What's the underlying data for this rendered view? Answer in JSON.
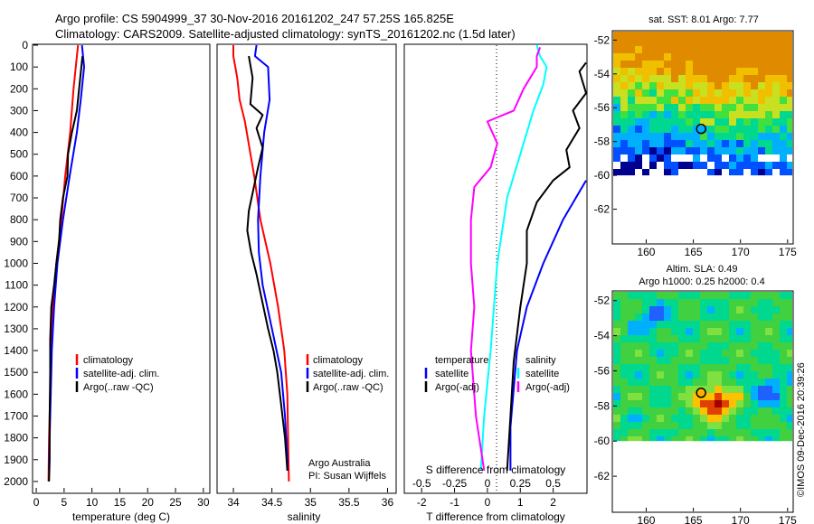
{
  "header": {
    "title_line1": "Argo profile: CS 5904999_37 30-Nov-2016 20161202_247 57.25S 165.825E",
    "title_line2": "Climatology: CARS2009. Satellite-adjusted climatology: synTS_20161202.nc (1.5d later)"
  },
  "colors": {
    "climatology": "#ff0000",
    "satellite_adj": "#0000ff",
    "argo": "#000000",
    "salinity_sat": "#00ffff",
    "salinity_argo": "#ff00ff"
  },
  "chart_data": [
    {
      "id": "temperature",
      "type": "line",
      "xlabel": "temperature (deg C)",
      "ylabel": "",
      "xlim": [
        -0.5,
        31
      ],
      "ylim": [
        2050,
        0
      ],
      "xticks": [
        0,
        5,
        10,
        15,
        20,
        25,
        30
      ],
      "yticks": [
        0,
        100,
        200,
        300,
        400,
        500,
        600,
        700,
        800,
        900,
        1000,
        1100,
        1200,
        1300,
        1400,
        1500,
        1600,
        1700,
        1800,
        1900,
        2000
      ],
      "legend": [
        "climatology",
        "satellite-adj. clim.",
        "Argo(..raw -QC)"
      ],
      "series": [
        {
          "name": "climatology",
          "color": "#ff0000",
          "points": [
            [
              7.5,
              0
            ],
            [
              7.3,
              50
            ],
            [
              6.7,
              200
            ],
            [
              6.1,
              400
            ],
            [
              5.2,
              600
            ],
            [
              4.5,
              800
            ],
            [
              3.6,
              1000
            ],
            [
              3.0,
              1200
            ],
            [
              2.7,
              1400
            ],
            [
              2.5,
              1600
            ],
            [
              2.3,
              1800
            ],
            [
              2.2,
              2000
            ]
          ]
        },
        {
          "name": "satellite-adj. clim.",
          "color": "#0000ff",
          "points": [
            [
              8.2,
              0
            ],
            [
              8.6,
              100
            ],
            [
              8.0,
              250
            ],
            [
              7.3,
              400
            ],
            [
              6.0,
              600
            ],
            [
              4.8,
              800
            ],
            [
              3.8,
              1000
            ],
            [
              3.2,
              1200
            ],
            [
              2.8,
              1400
            ],
            [
              2.6,
              1600
            ],
            [
              2.4,
              1800
            ],
            [
              2.3,
              1950
            ]
          ]
        },
        {
          "name": "Argo(..raw -QC)",
          "color": "#000000",
          "points": [
            [
              8.3,
              50
            ],
            [
              7.9,
              150
            ],
            [
              7.3,
              300
            ],
            [
              6.4,
              400
            ],
            [
              5.7,
              500
            ],
            [
              5.6,
              600
            ],
            [
              4.8,
              700
            ],
            [
              4.3,
              800
            ],
            [
              4.1,
              900
            ],
            [
              3.6,
              1000
            ],
            [
              3.2,
              1100
            ],
            [
              2.7,
              1200
            ],
            [
              2.5,
              1350
            ],
            [
              2.5,
              1500
            ],
            [
              2.4,
              1700
            ],
            [
              2.4,
              1900
            ],
            [
              2.3,
              2000
            ]
          ]
        }
      ]
    },
    {
      "id": "salinity",
      "type": "line",
      "xlabel": "salinity",
      "ylabel": "",
      "xlim": [
        33.8,
        36.1
      ],
      "ylim": [
        2050,
        0
      ],
      "xticks": [
        34,
        34.5,
        35,
        35.5,
        36
      ],
      "xtick_labels": [
        "34",
        "34.5",
        "35",
        "35.5",
        "36"
      ],
      "legend": [
        "climatology",
        "satellite-adj. clim.",
        "Argo(..raw -QC)"
      ],
      "annotations": [
        "Argo Australia",
        "PI: Susan Wijffels"
      ],
      "series": [
        {
          "name": "climatology",
          "color": "#ff0000",
          "points": [
            [
              34.0,
              0
            ],
            [
              34.0,
              50
            ],
            [
              34.05,
              150
            ],
            [
              34.08,
              250
            ],
            [
              34.15,
              350
            ],
            [
              34.27,
              600
            ],
            [
              34.35,
              800
            ],
            [
              34.48,
              1000
            ],
            [
              34.58,
              1200
            ],
            [
              34.66,
              1400
            ],
            [
              34.7,
              1600
            ],
            [
              34.71,
              1800
            ],
            [
              34.72,
              2000
            ]
          ]
        },
        {
          "name": "satellite-adj. clim.",
          "color": "#0000ff",
          "points": [
            [
              34.3,
              0
            ],
            [
              34.28,
              50
            ],
            [
              34.45,
              100
            ],
            [
              34.47,
              250
            ],
            [
              34.4,
              400
            ],
            [
              34.35,
              600
            ],
            [
              34.32,
              800
            ],
            [
              34.33,
              950
            ],
            [
              34.38,
              1100
            ],
            [
              34.5,
              1300
            ],
            [
              34.62,
              1500
            ],
            [
              34.67,
              1700
            ],
            [
              34.7,
              1900
            ],
            [
              34.7,
              1950
            ]
          ]
        },
        {
          "name": "Argo(..raw -QC)",
          "color": "#000000",
          "points": [
            [
              34.2,
              50
            ],
            [
              34.25,
              150
            ],
            [
              34.22,
              270
            ],
            [
              34.38,
              320
            ],
            [
              34.3,
              380
            ],
            [
              34.38,
              470
            ],
            [
              34.32,
              560
            ],
            [
              34.26,
              660
            ],
            [
              34.2,
              760
            ],
            [
              34.18,
              850
            ],
            [
              34.23,
              950
            ],
            [
              34.3,
              1050
            ],
            [
              34.36,
              1150
            ],
            [
              34.45,
              1300
            ],
            [
              34.52,
              1400
            ],
            [
              34.57,
              1500
            ],
            [
              34.62,
              1650
            ],
            [
              34.67,
              1800
            ],
            [
              34.7,
              1950
            ]
          ]
        }
      ]
    },
    {
      "id": "difference",
      "type": "line",
      "xlabel": "T difference from climatology",
      "xlabel_top": "S difference from climatology",
      "ylabel": "",
      "xlim": [
        -2.5,
        3.0
      ],
      "ylim": [
        2050,
        0
      ],
      "xticks": [
        -2,
        -1,
        0,
        1,
        2
      ],
      "xticks_top": [
        -0.5,
        -0.25,
        0,
        0.25,
        0.5
      ],
      "xtick_labels_top": [
        "-0.5",
        "-0.25",
        "0",
        "0.25",
        "0.5"
      ],
      "legend_temperature": [
        "temperature",
        "satellite",
        "Argo(-adj)"
      ],
      "legend_salinity": [
        "salinity",
        "satellite",
        "Argo(-adj)"
      ],
      "series": [
        {
          "name": "T satellite",
          "color": "#0000ff",
          "points": [
            [
              0.7,
              1950
            ],
            [
              0.7,
              1750
            ],
            [
              0.9,
              1400
            ],
            [
              1.2,
              1200
            ],
            [
              1.7,
              1000
            ],
            [
              2.3,
              800
            ],
            [
              3.0,
              620
            ]
          ]
        },
        {
          "name": "T Argo(-adj)",
          "color": "#000000",
          "points": [
            [
              0.6,
              1950
            ],
            [
              0.7,
              1700
            ],
            [
              0.8,
              1450
            ],
            [
              1.0,
              1200
            ],
            [
              1.2,
              1000
            ],
            [
              1.2,
              850
            ],
            [
              1.5,
              720
            ],
            [
              2.0,
              620
            ],
            [
              2.5,
              560
            ],
            [
              2.4,
              480
            ],
            [
              2.8,
              380
            ],
            [
              2.6,
              300
            ],
            [
              3.0,
              220
            ],
            [
              2.8,
              120
            ],
            [
              3.0,
              80
            ]
          ]
        },
        {
          "name": "S satellite",
          "color": "#00ffff",
          "points": [
            [
              -0.2,
              1950
            ],
            [
              -0.1,
              1700
            ],
            [
              0.1,
              1400
            ],
            [
              0.3,
              1000
            ],
            [
              0.6,
              700
            ],
            [
              1.0,
              500
            ],
            [
              1.4,
              300
            ],
            [
              1.7,
              180
            ],
            [
              1.8,
              100
            ],
            [
              1.6,
              50
            ],
            [
              1.5,
              0
            ]
          ]
        },
        {
          "name": "S Argo(-adj)",
          "color": "#ff00ff",
          "points": [
            [
              -0.1,
              1950
            ],
            [
              -0.35,
              1700
            ],
            [
              -0.5,
              1400
            ],
            [
              -0.4,
              1200
            ],
            [
              -0.5,
              1000
            ],
            [
              -0.5,
              800
            ],
            [
              -0.4,
              650
            ],
            [
              0.1,
              560
            ],
            [
              0.3,
              450
            ],
            [
              0.0,
              350
            ],
            [
              0.8,
              300
            ],
            [
              1.1,
              200
            ],
            [
              1.5,
              100
            ],
            [
              1.5,
              50
            ],
            [
              1.6,
              10
            ]
          ]
        }
      ]
    },
    {
      "id": "sst_map",
      "type": "heatmap",
      "title": "sat. SST: 8.01  Argo: 7.77",
      "xlim": [
        156.5,
        175.5
      ],
      "ylim": [
        -64,
        -51.5
      ],
      "xticks": [
        160,
        165,
        170,
        175
      ],
      "yticks": [
        -52,
        -54,
        -56,
        -58,
        -60,
        -62
      ],
      "ytick_labels": [
        "-52",
        "-54",
        "-56",
        "-58",
        "-60",
        "-62"
      ],
      "marker": [
        165.825,
        -57.25
      ],
      "data_extent_lat": [
        -60,
        -51.5
      ]
    },
    {
      "id": "sla_map",
      "type": "heatmap",
      "title": "Altim. SLA: 0.49",
      "subtitle": "Argo h1000: 0.25 h2000: 0.4",
      "xlim": [
        156.5,
        175.5
      ],
      "ylim": [
        -64,
        -51.5
      ],
      "xticks": [
        160,
        165,
        170,
        175
      ],
      "yticks": [
        -52,
        -54,
        -56,
        -58,
        -60,
        -62
      ],
      "ytick_labels": [
        "-52",
        "-54",
        "-56",
        "-58",
        "-60",
        "-62"
      ],
      "marker": [
        165.825,
        -57.25
      ],
      "data_extent_lat": [
        -60,
        -51.5
      ]
    }
  ],
  "footer": {
    "credit": "©IMOS 09-Dec-2016 20:39:26"
  }
}
